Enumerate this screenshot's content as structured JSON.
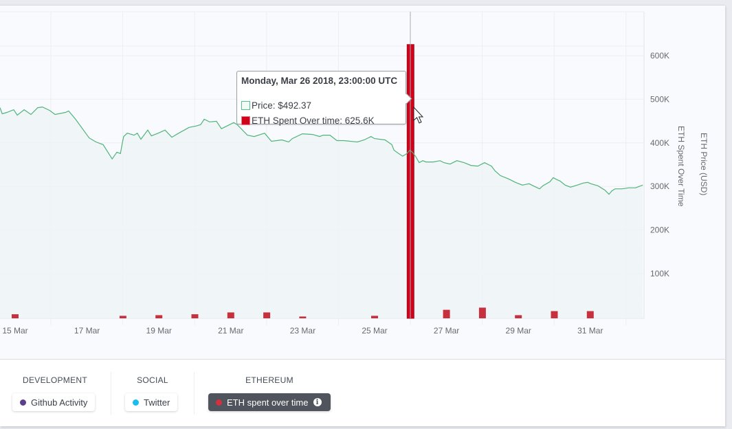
{
  "tooltip": {
    "title": "Monday, Mar 26 2018, 23:00:00 UTC",
    "price_label": "Price: $492.37",
    "eth_label": "ETH Spent Over time: 625.6K"
  },
  "filters": {
    "development": {
      "title": "DEVELOPMENT",
      "chip": "Github Activity",
      "color": "#5a3e8f"
    },
    "social": {
      "title": "SOCIAL",
      "chip": "Twitter",
      "color": "#19bdf0"
    },
    "ethereum": {
      "title": "ETHEREUM",
      "chip": "ETH spent over time",
      "color": "#d33040",
      "icon": "info-icon"
    }
  },
  "chart_data": {
    "type": "line+bar",
    "x_ticks": [
      "15 Mar",
      "17 Mar",
      "19 Mar",
      "21 Mar",
      "23 Mar",
      "25 Mar",
      "27 Mar",
      "29 Mar",
      "31 Mar"
    ],
    "y_ticks": [
      "100K",
      "200K",
      "300K",
      "400K",
      "500K",
      "600K"
    ],
    "y_tick_values": [
      100000,
      200000,
      300000,
      400000,
      500000,
      600000
    ],
    "y1_label": "ETH Spent Over Time",
    "y2_label": "ETH Price (USD)",
    "price_ylim": [
      0,
      900
    ],
    "eth_ylim": [
      0,
      700000
    ],
    "grid": true,
    "colors": {
      "price": "#4fb37a",
      "bars": "#c8303e",
      "highlight": "#d0021b"
    },
    "price_series": {
      "name": "Price",
      "x_day_of_march": [
        14.58,
        14.64,
        14.77,
        14.96,
        15.06,
        15.25,
        15.44,
        15.63,
        15.76,
        15.96,
        16.11,
        16.4,
        16.49,
        16.68,
        17.06,
        17.25,
        17.45,
        17.64,
        17.7,
        17.83,
        17.93,
        17.98,
        18.02,
        18.12,
        18.31,
        18.4,
        18.5,
        18.69,
        18.79,
        18.98,
        19.17,
        19.36,
        19.55,
        19.84,
        20.03,
        20.16,
        20.26,
        20.41,
        20.6,
        20.74,
        20.89,
        21.08,
        21.18,
        21.46,
        21.65,
        21.94,
        22.13,
        22.42,
        22.61,
        22.71,
        22.99,
        23.28,
        23.47,
        23.57,
        23.76,
        23.95,
        24.14,
        24.52,
        24.71,
        24.9,
        25.0,
        25.29,
        25.48,
        25.54,
        25.67,
        25.78,
        25.9,
        25.98,
        26.05,
        26.15,
        26.24,
        26.34,
        26.43,
        26.63,
        26.82,
        26.93,
        27.1,
        27.29,
        27.49,
        27.68,
        27.87,
        28.06,
        28.25,
        28.35,
        28.5,
        28.73,
        28.92,
        29.11,
        29.3,
        29.45,
        29.59,
        29.68,
        29.88,
        29.97,
        30.07,
        30.16,
        30.3,
        30.45,
        30.64,
        30.8,
        30.93,
        31.02,
        31.21,
        31.41,
        31.52,
        31.6,
        31.69,
        31.88,
        32.07,
        32.26,
        32.46
      ],
      "values": [
        617,
        599,
        603,
        611,
        595,
        611,
        597,
        617,
        619,
        609,
        597,
        603,
        607,
        583,
        528,
        516,
        508,
        476,
        466,
        486,
        482,
        512,
        532,
        542,
        536,
        542,
        524,
        551,
        534,
        542,
        551,
        530,
        542,
        559,
        563,
        567,
        583,
        575,
        577,
        555,
        563,
        573,
        567,
        536,
        532,
        542,
        518,
        522,
        516,
        526,
        540,
        538,
        532,
        536,
        536,
        520,
        520,
        516,
        522,
        532,
        526,
        522,
        508,
        492,
        482,
        474,
        482,
        492,
        486,
        472,
        455,
        461,
        457,
        457,
        461,
        455,
        451,
        461,
        455,
        447,
        445,
        455,
        445,
        431,
        417,
        407,
        397,
        389,
        393,
        385,
        378,
        387,
        399,
        411,
        405,
        401,
        389,
        383,
        389,
        395,
        397,
        393,
        387,
        374,
        362,
        372,
        378,
        378,
        381,
        381,
        389
      ]
    },
    "eth_series": {
      "name": "ETH Spent Over time",
      "x_day_of_march": [
        15,
        18,
        19,
        20,
        21,
        22,
        23,
        25,
        26,
        27,
        28,
        29,
        30,
        31
      ],
      "values": [
        6800,
        3200,
        4700,
        6800,
        11000,
        11000,
        1600,
        3200,
        625600,
        17000,
        22000,
        4700,
        14000,
        14000
      ],
      "highlight_index": 8
    }
  }
}
